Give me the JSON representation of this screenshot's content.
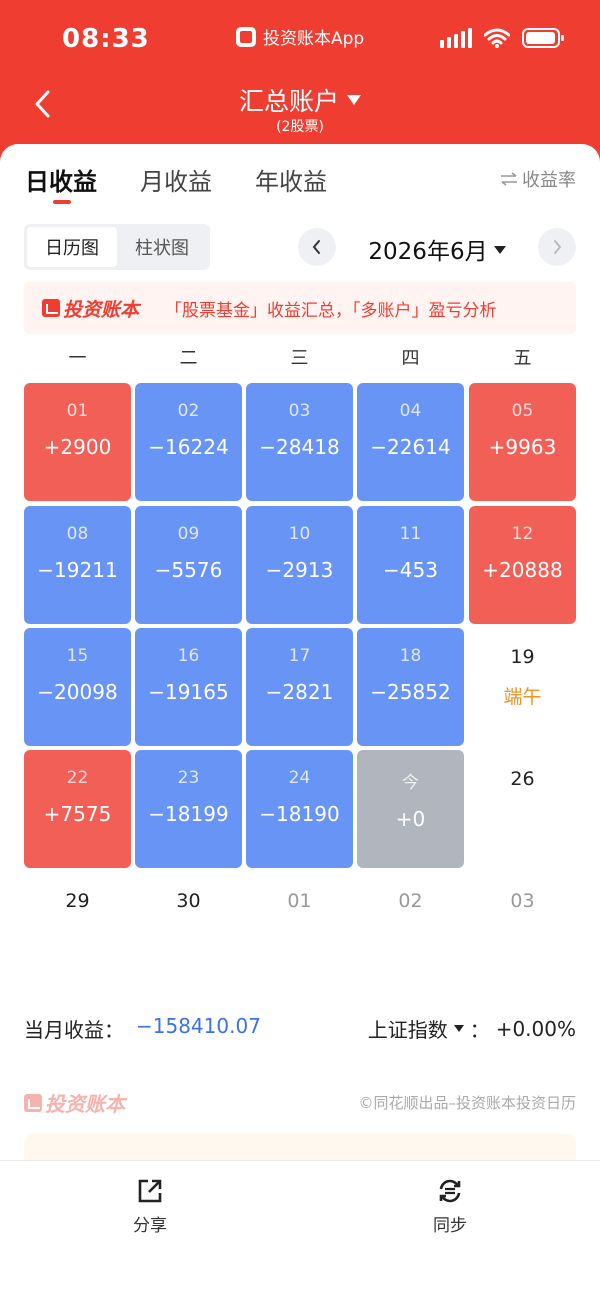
{
  "status_bar": {
    "time": "08:33",
    "app_name": "投资账本App"
  },
  "header": {
    "title": "汇总账户",
    "subtitle": "(2股票)"
  },
  "tabs": [
    {
      "label": "日收益",
      "active": true
    },
    {
      "label": "月收益",
      "active": false
    },
    {
      "label": "年收益",
      "active": false
    }
  ],
  "rate_toggle": {
    "icon": "swap-icon",
    "label": "收益率"
  },
  "view_toggle": [
    {
      "label": "日历图",
      "active": true
    },
    {
      "label": "柱状图",
      "active": false
    }
  ],
  "month_nav": {
    "label": "2026年6月"
  },
  "promo": {
    "brand": "投资账本",
    "text": "「股票基金」收益汇总，「多账户」盈亏分析"
  },
  "weekdays": [
    "一",
    "二",
    "三",
    "四",
    "五"
  ],
  "calendar": [
    [
      {
        "day": "01",
        "value": "+2900",
        "type": "gain"
      },
      {
        "day": "02",
        "value": "−16224",
        "type": "loss"
      },
      {
        "day": "03",
        "value": "−28418",
        "type": "loss"
      },
      {
        "day": "04",
        "value": "−22614",
        "type": "loss"
      },
      {
        "day": "05",
        "value": "+9963",
        "type": "gain"
      }
    ],
    [
      {
        "day": "08",
        "value": "−19211",
        "type": "loss"
      },
      {
        "day": "09",
        "value": "−5576",
        "type": "loss"
      },
      {
        "day": "10",
        "value": "−2913",
        "type": "loss"
      },
      {
        "day": "11",
        "value": "−453",
        "type": "loss"
      },
      {
        "day": "12",
        "value": "+20888",
        "type": "gain"
      }
    ],
    [
      {
        "day": "15",
        "value": "−20098",
        "type": "loss"
      },
      {
        "day": "16",
        "value": "−19165",
        "type": "loss"
      },
      {
        "day": "17",
        "value": "−2821",
        "type": "loss"
      },
      {
        "day": "18",
        "value": "−25852",
        "type": "loss"
      },
      {
        "day": "19",
        "value": "端午",
        "type": "empty"
      }
    ],
    [
      {
        "day": "22",
        "value": "+7575",
        "type": "gain"
      },
      {
        "day": "23",
        "value": "−18199",
        "type": "loss"
      },
      {
        "day": "24",
        "value": "−18190",
        "type": "loss"
      },
      {
        "day": "今",
        "value": "+0",
        "type": "today"
      },
      {
        "day": "26",
        "value": "",
        "type": "empty"
      }
    ],
    [
      {
        "day": "29",
        "value": "",
        "type": "empty"
      },
      {
        "day": "30",
        "value": "",
        "type": "empty"
      },
      {
        "day": "01",
        "value": "",
        "type": "next"
      },
      {
        "day": "02",
        "value": "",
        "type": "next"
      },
      {
        "day": "03",
        "value": "",
        "type": "next"
      }
    ]
  ],
  "summary": {
    "month_label": "当月收益：",
    "month_value": "−158410.07",
    "index_label": "上证指数",
    "index_sep": "：",
    "index_value": "+0.00%"
  },
  "footer": {
    "brand": "投资账本",
    "credit": "©同花顺出品–投资账本投资日历"
  },
  "bottom_bar": [
    {
      "label": "分享",
      "icon": "share-icon"
    },
    {
      "label": "同步",
      "icon": "sync-icon"
    }
  ],
  "colors": {
    "brand_red": "#f03d31",
    "gain": "#f25f56",
    "loss": "#6894f5",
    "today": "#b1b5bd",
    "holiday": "#f29322",
    "loss_text": "#3b72e8"
  }
}
